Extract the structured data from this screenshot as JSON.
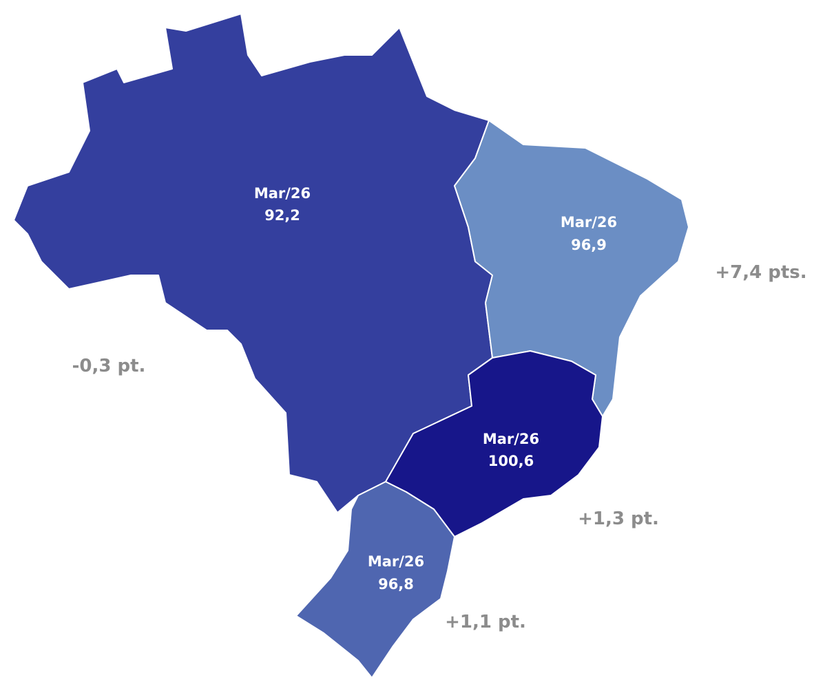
{
  "regions": [
    {
      "label": "Mar/26",
      "value": "92,2",
      "change": "-0,3 pt.",
      "color": "#343f9e"
    },
    {
      "label": "Mar/26",
      "value": "96,9",
      "change": "+7,4 pts.",
      "color": "#6b8ec4"
    },
    {
      "label": "Mar/26",
      "value": "100,6",
      "change": "+1,3 pt.",
      "color": "#17168a"
    },
    {
      "label": "Mar/26",
      "value": "96,8",
      "change": "+1,1 pt.",
      "color": "#4f66b0"
    }
  ]
}
